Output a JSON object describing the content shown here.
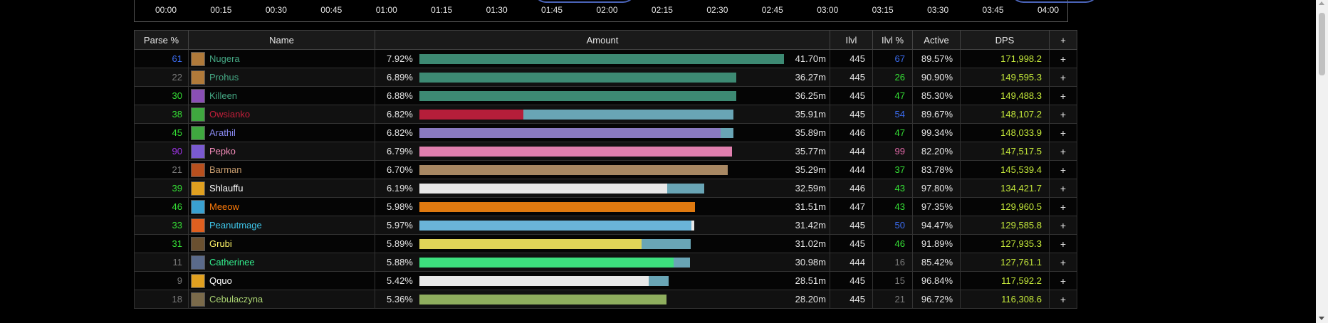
{
  "timeline": {
    "ticks": [
      "00:00",
      "00:15",
      "00:30",
      "00:45",
      "01:00",
      "01:15",
      "01:30",
      "01:45",
      "02:00",
      "02:15",
      "02:30",
      "02:45",
      "03:00",
      "03:15",
      "03:30",
      "03:45",
      "04:00"
    ]
  },
  "table": {
    "headers": {
      "parse": "Parse %",
      "name": "Name",
      "amount": "Amount",
      "ilvl": "Ilvl",
      "ilvl_pct": "Ilvl %",
      "active": "Active",
      "dps": "DPS",
      "plus": "+"
    },
    "max_amount_pct": 7.92,
    "rows": [
      {
        "parse": "61",
        "parse_color": "#3b6cf0",
        "name": "Nugera",
        "name_color": "#45a884",
        "icon_color": "#b07a3a",
        "pct": "7.92%",
        "segments": [
          {
            "frac": 1.0,
            "color": "#3d8a73"
          }
        ],
        "amount": "41.70m",
        "ilvl": "445",
        "ilvl_pct": "67",
        "ilvl_pct_color": "#3b6cf0",
        "active": "89.57%",
        "dps": "171,998.2",
        "plus": "+"
      },
      {
        "parse": "22",
        "parse_color": "#7a7a7a",
        "name": "Prohus",
        "name_color": "#45a884",
        "icon_color": "#b07a3a",
        "pct": "6.89%",
        "segments": [
          {
            "frac": 1.0,
            "color": "#3d8a73"
          }
        ],
        "amount": "36.27m",
        "ilvl": "445",
        "ilvl_pct": "26",
        "ilvl_pct_color": "#35e035",
        "active": "90.90%",
        "dps": "149,595.3",
        "plus": "+"
      },
      {
        "parse": "30",
        "parse_color": "#35e035",
        "name": "Killeen",
        "name_color": "#45a884",
        "icon_color": "#8a4fb5",
        "pct": "6.88%",
        "segments": [
          {
            "frac": 1.0,
            "color": "#3d8a73"
          }
        ],
        "amount": "36.25m",
        "ilvl": "445",
        "ilvl_pct": "47",
        "ilvl_pct_color": "#35e035",
        "active": "85.30%",
        "dps": "149,488.3",
        "plus": "+"
      },
      {
        "parse": "38",
        "parse_color": "#35e035",
        "name": "Owsianko",
        "name_color": "#c41e3a",
        "icon_color": "#3fa83f",
        "pct": "6.82%",
        "segments": [
          {
            "frac": 0.33,
            "color": "#b51e3a"
          },
          {
            "frac": 0.67,
            "color": "#69a5b5"
          }
        ],
        "amount": "35.91m",
        "ilvl": "445",
        "ilvl_pct": "54",
        "ilvl_pct_color": "#3b6cf0",
        "active": "89.67%",
        "dps": "148,107.2",
        "plus": "+"
      },
      {
        "parse": "45",
        "parse_color": "#35e035",
        "name": "Arathil",
        "name_color": "#8787ed",
        "icon_color": "#3fa83f",
        "pct": "6.82%",
        "segments": [
          {
            "frac": 0.96,
            "color": "#8a7ac0"
          },
          {
            "frac": 0.04,
            "color": "#69a5b5"
          }
        ],
        "amount": "35.89m",
        "ilvl": "446",
        "ilvl_pct": "47",
        "ilvl_pct_color": "#35e035",
        "active": "99.34%",
        "dps": "148,033.9",
        "plus": "+"
      },
      {
        "parse": "90",
        "parse_color": "#a335ee",
        "name": "Pepko",
        "name_color": "#f48cba",
        "icon_color": "#7a5ad0",
        "pct": "6.79%",
        "segments": [
          {
            "frac": 1.0,
            "color": "#e07fae"
          }
        ],
        "amount": "35.77m",
        "ilvl": "444",
        "ilvl_pct": "99",
        "ilvl_pct_color": "#e268a8",
        "active": "82.20%",
        "dps": "147,517.5",
        "plus": "+"
      },
      {
        "parse": "21",
        "parse_color": "#7a7a7a",
        "name": "Barman",
        "name_color": "#c69b6d",
        "icon_color": "#b8501e",
        "pct": "6.70%",
        "segments": [
          {
            "frac": 1.0,
            "color": "#a88863"
          }
        ],
        "amount": "35.29m",
        "ilvl": "444",
        "ilvl_pct": "37",
        "ilvl_pct_color": "#35e035",
        "active": "83.78%",
        "dps": "145,539.4",
        "plus": "+"
      },
      {
        "parse": "39",
        "parse_color": "#35e035",
        "name": "Shlauffu",
        "name_color": "#ffffff",
        "icon_color": "#e0a020",
        "pct": "6.19%",
        "segments": [
          {
            "frac": 0.87,
            "color": "#e8e8e8"
          },
          {
            "frac": 0.13,
            "color": "#69a5b5"
          }
        ],
        "amount": "32.59m",
        "ilvl": "446",
        "ilvl_pct": "43",
        "ilvl_pct_color": "#35e035",
        "active": "97.80%",
        "dps": "134,421.7",
        "plus": "+"
      },
      {
        "parse": "46",
        "parse_color": "#35e035",
        "name": "Meeow",
        "name_color": "#ff7c0a",
        "icon_color": "#3aa0d0",
        "pct": "5.98%",
        "segments": [
          {
            "frac": 1.0,
            "color": "#e07a10"
          }
        ],
        "amount": "31.51m",
        "ilvl": "447",
        "ilvl_pct": "43",
        "ilvl_pct_color": "#35e035",
        "active": "97.35%",
        "dps": "129,960.5",
        "plus": "+"
      },
      {
        "parse": "33",
        "parse_color": "#35e035",
        "name": "Peanutmage",
        "name_color": "#3fc7eb",
        "icon_color": "#e06020",
        "pct": "5.97%",
        "segments": [
          {
            "frac": 0.99,
            "color": "#6ab4d8"
          },
          {
            "frac": 0.01,
            "color": "#e8e8e8"
          }
        ],
        "amount": "31.42m",
        "ilvl": "445",
        "ilvl_pct": "50",
        "ilvl_pct_color": "#3b6cf0",
        "active": "94.47%",
        "dps": "129,585.8",
        "plus": "+"
      },
      {
        "parse": "31",
        "parse_color": "#35e035",
        "name": "Grubi",
        "name_color": "#fff468",
        "icon_color": "#6a5030",
        "pct": "5.89%",
        "segments": [
          {
            "frac": 0.82,
            "color": "#e0d458"
          },
          {
            "frac": 0.18,
            "color": "#69a5b5"
          }
        ],
        "amount": "31.02m",
        "ilvl": "445",
        "ilvl_pct": "46",
        "ilvl_pct_color": "#35e035",
        "active": "91.89%",
        "dps": "127,935.3",
        "plus": "+"
      },
      {
        "parse": "11",
        "parse_color": "#7a7a7a",
        "name": "Catherinee",
        "name_color": "#33ef8e",
        "icon_color": "#5a6a8a",
        "pct": "5.88%",
        "segments": [
          {
            "frac": 0.94,
            "color": "#3de07e"
          },
          {
            "frac": 0.06,
            "color": "#69a5b5"
          }
        ],
        "amount": "30.98m",
        "ilvl": "444",
        "ilvl_pct": "16",
        "ilvl_pct_color": "#7a7a7a",
        "active": "85.42%",
        "dps": "127,761.1",
        "plus": "+"
      },
      {
        "parse": "9",
        "parse_color": "#7a7a7a",
        "name": "Qquo",
        "name_color": "#ffffff",
        "icon_color": "#e0a020",
        "pct": "5.42%",
        "segments": [
          {
            "frac": 0.92,
            "color": "#e8e8e8"
          },
          {
            "frac": 0.08,
            "color": "#69a5b5"
          }
        ],
        "amount": "28.51m",
        "ilvl": "445",
        "ilvl_pct": "15",
        "ilvl_pct_color": "#7a7a7a",
        "active": "96.84%",
        "dps": "117,592.2",
        "plus": "+"
      },
      {
        "parse": "18",
        "parse_color": "#7a7a7a",
        "name": "Cebulaczyna",
        "name_color": "#aad372",
        "icon_color": "#7a6a4a",
        "pct": "5.36%",
        "segments": [
          {
            "frac": 1.0,
            "color": "#8fae5e"
          }
        ],
        "amount": "28.20m",
        "ilvl": "445",
        "ilvl_pct": "21",
        "ilvl_pct_color": "#7a7a7a",
        "active": "96.72%",
        "dps": "116,308.6",
        "plus": "+"
      }
    ]
  },
  "colors": {
    "dps": "#c4e83a",
    "text": "#e6e6e6"
  }
}
